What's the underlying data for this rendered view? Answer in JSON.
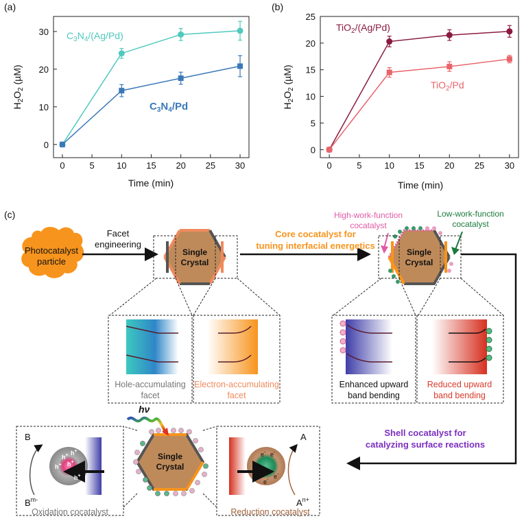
{
  "panel_labels": {
    "a": "(a)",
    "b": "(b)",
    "c": "(c)"
  },
  "chart_data": [
    {
      "type": "line",
      "panel": "(a)",
      "xlabel": "Time (min)",
      "ylabel": "H2O2 (µM)",
      "ylabel_main": "H",
      "ylabel_sub1": "2",
      "ylabel_mid": "O",
      "ylabel_sub2": "2",
      "ylabel_unit": " (µM)",
      "xlim": [
        -1.5,
        31.5
      ],
      "ylim": [
        -3.5,
        34
      ],
      "xticks": [
        0,
        5,
        10,
        15,
        20,
        25,
        30
      ],
      "yticks": [
        0,
        10,
        20,
        30
      ],
      "x": [
        0,
        10,
        20,
        30
      ],
      "series": [
        {
          "name": "C3N4/(Ag/Pd)",
          "name_main": "C",
          "name_sub1": "3",
          "name_mid": "N",
          "name_sub2": "4",
          "name_tail": "/(Ag/Pd)",
          "color": "#4fc9bd",
          "marker": "circle",
          "values": [
            0,
            24.2,
            29.2,
            30.2
          ],
          "errors": [
            0.3,
            1.3,
            1.6,
            2.5
          ]
        },
        {
          "name": "C3N4/Pd",
          "name_main": "C",
          "name_sub1": "3",
          "name_mid": "N",
          "name_sub2": "4",
          "name_tail": "/Pd",
          "color": "#3a78b8",
          "marker": "square",
          "values": [
            0,
            14.3,
            17.6,
            20.8
          ],
          "errors": [
            0.3,
            1.6,
            1.6,
            2.8
          ]
        }
      ]
    },
    {
      "type": "line",
      "panel": "(b)",
      "xlabel": "Time (min)",
      "ylabel": "H2O2 (µM)",
      "ylabel_main": "H",
      "ylabel_sub1": "2",
      "ylabel_mid": "O",
      "ylabel_sub2": "2",
      "ylabel_unit": " (µM)",
      "xlim": [
        -1.5,
        31.5
      ],
      "ylim": [
        -1.5,
        25
      ],
      "xticks": [
        0,
        5,
        10,
        15,
        20,
        25,
        30
      ],
      "yticks": [
        0,
        5,
        10,
        15,
        20,
        25
      ],
      "x": [
        0,
        10,
        20,
        30
      ],
      "series": [
        {
          "name": "TiO2/(Ag/Pd)",
          "name_main": "TiO",
          "name_sub1": "2",
          "name_tail": "/(Ag/Pd)",
          "color": "#8a1a3f",
          "marker": "circle",
          "values": [
            0,
            20.3,
            21.5,
            22.2
          ],
          "errors": [
            0.2,
            1.0,
            1.0,
            1.1
          ]
        },
        {
          "name": "TiO2/Pd",
          "name_main": "TiO",
          "name_sub1": "2",
          "name_tail": "/Pd",
          "color": "#e8646a",
          "marker": "square",
          "values": [
            0,
            14.5,
            15.6,
            17.0
          ],
          "errors": [
            0.2,
            0.9,
            0.9,
            0.7
          ]
        }
      ]
    }
  ],
  "diagram": {
    "particle": "Photocatalyst particle",
    "particle_l1": "Photocatalyst",
    "particle_l2": "particle",
    "facet_arrow_l1": "Facet",
    "facet_arrow_l2": "engineering",
    "crystal_l1": "Single",
    "crystal_l2": "Crystal",
    "core_l1": "Core cocatalyst for",
    "core_l2": "tuning interfacial energetics",
    "high_wf_l1": "High-work-function",
    "high_wf_l2": "cocatalyst",
    "low_wf_l1": "Low-work-function",
    "low_wf_l2": "cocatalyst",
    "hole_facet_l1": "Hole-accumulating",
    "hole_facet_l2": "facet",
    "electron_facet_l1": "Electron-accumulating",
    "electron_facet_l2": "facet",
    "enhanced_l1": "Enhanced upward",
    "enhanced_l2": "band bending",
    "reduced_l1": "Reduced upward",
    "reduced_l2": "band bending",
    "shell_l1": "Shell cocatalyst for",
    "shell_l2": "catalyzing surface reactions",
    "hv": "hν",
    "oxidation_label": "Oxidation cocatalyst",
    "reduction_label": "Reduction cocatalyst",
    "ox_reactant": "B",
    "ox_reactant_sup": "m-",
    "ox_product": "B",
    "red_reactant": "A",
    "red_reactant_sup": "n+",
    "red_product": "A",
    "hole": "h",
    "hole_sup": "+",
    "electron": "e",
    "electron_sup": "-",
    "colors": {
      "orange": "#f7941d",
      "crystal": "#bf8a5a",
      "dark_facet": "#555555",
      "light_facet": "#f08a5d",
      "pink": "#e05aa6",
      "green": "#1a7a3a",
      "purple": "#7b2fbf",
      "red": "#d83a2a",
      "blue": "#4a49b0",
      "teal": "#3cc9c0"
    }
  }
}
